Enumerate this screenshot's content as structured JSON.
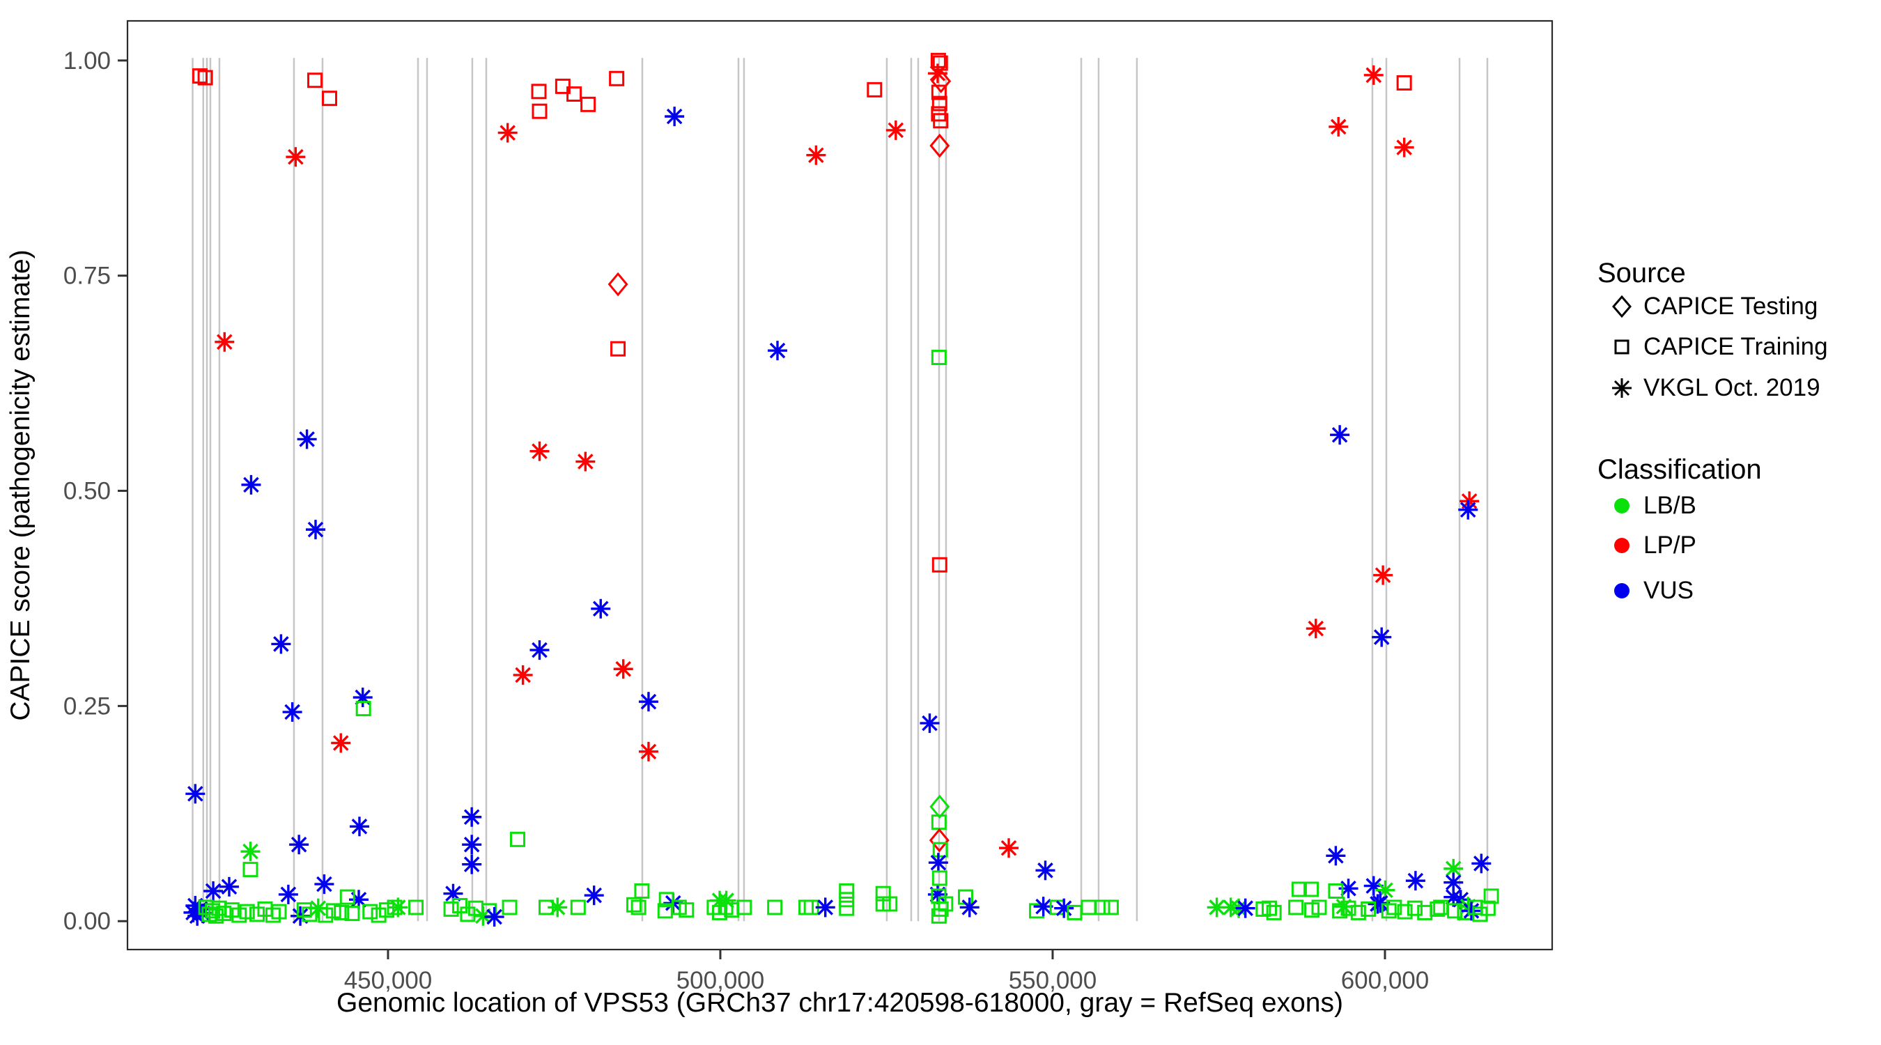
{
  "figure": {
    "background": "#ffffff"
  },
  "colors": {
    "LB": "#0ae10a",
    "LP": "#ff0000",
    "VUS": "#0000ee",
    "exon_line": "#c6c6c6",
    "axis_text": "#4d4d4d",
    "axis_title": "#000000",
    "panel_border": "#2b2b2b"
  },
  "legend": {
    "source": {
      "title": "Source",
      "items": [
        {
          "label": "CAPICE Testing",
          "marker": "diamond"
        },
        {
          "label": "CAPICE Training",
          "marker": "square"
        },
        {
          "label": "VKGL Oct. 2019",
          "marker": "asterisk"
        }
      ]
    },
    "classification": {
      "title": "Classification",
      "items": [
        {
          "label": "LB/B",
          "color_key": "LB"
        },
        {
          "label": "LP/P",
          "color_key": "LP"
        },
        {
          "label": "VUS",
          "color_key": "VUS"
        }
      ]
    }
  },
  "chart_data": {
    "type": "scatter",
    "xlabel": "Genomic location of VPS53 (GRCh37 chr17:420598-618000, gray = RefSeq exons)",
    "ylabel": "CAPICE score (pathogenicity estimate)",
    "xlim": [
      410800,
      625160
    ],
    "ylim": [
      -0.033,
      1.046
    ],
    "x_ticks": [
      {
        "v": 450000,
        "label": "450,000"
      },
      {
        "v": 500000,
        "label": "500,000"
      },
      {
        "v": 550000,
        "label": "550,000"
      },
      {
        "v": 600000,
        "label": "600,000"
      }
    ],
    "y_ticks": [
      {
        "v": 0.0,
        "label": "0.00"
      },
      {
        "v": 0.25,
        "label": "0.25"
      },
      {
        "v": 0.5,
        "label": "0.50"
      },
      {
        "v": 0.75,
        "label": "0.75"
      },
      {
        "v": 1.0,
        "label": "1.00"
      }
    ],
    "exon_positions": [
      420600,
      422200,
      422750,
      423270,
      424630,
      435850,
      440150,
      454510,
      455870,
      462680,
      464780,
      488260,
      502730,
      503560,
      525050,
      528720,
      529770,
      532910,
      533960,
      554300,
      556920,
      562680,
      598110,
      600210,
      611220,
      615410
    ],
    "point_format": [
      "genomic_location",
      "capice_score",
      "classification",
      "source"
    ],
    "points": [
      [
        421700,
        0.982,
        "LP",
        "train"
      ],
      [
        422500,
        0.98,
        "LP",
        "train"
      ],
      [
        439000,
        0.977,
        "LP",
        "train"
      ],
      [
        441200,
        0.956,
        "LP",
        "train"
      ],
      [
        436100,
        0.888,
        "LP",
        "vkgl"
      ],
      [
        425400,
        0.673,
        "LP",
        "vkgl"
      ],
      [
        429400,
        0.507,
        "VUS",
        "vkgl"
      ],
      [
        437800,
        0.56,
        "VUS",
        "vkgl"
      ],
      [
        439100,
        0.455,
        "VUS",
        "vkgl"
      ],
      [
        433900,
        0.322,
        "VUS",
        "vkgl"
      ],
      [
        435600,
        0.243,
        "VUS",
        "vkgl"
      ],
      [
        446200,
        0.26,
        "VUS",
        "vkgl"
      ],
      [
        446300,
        0.247,
        "LB",
        "train"
      ],
      [
        442900,
        0.207,
        "LP",
        "vkgl"
      ],
      [
        421000,
        0.148,
        "VUS",
        "vkgl"
      ],
      [
        468000,
        0.916,
        "LP",
        "vkgl"
      ],
      [
        472700,
        0.964,
        "LP",
        "train"
      ],
      [
        476300,
        0.97,
        "LP",
        "train"
      ],
      [
        478000,
        0.961,
        "LP",
        "train"
      ],
      [
        480100,
        0.949,
        "LP",
        "train"
      ],
      [
        472800,
        0.941,
        "LP",
        "train"
      ],
      [
        484400,
        0.979,
        "LP",
        "train"
      ],
      [
        472800,
        0.546,
        "LP",
        "vkgl"
      ],
      [
        479700,
        0.534,
        "LP",
        "vkgl"
      ],
      [
        472800,
        0.315,
        "VUS",
        "vkgl"
      ],
      [
        470300,
        0.286,
        "LP",
        "vkgl"
      ],
      [
        482000,
        0.363,
        "VUS",
        "vkgl"
      ],
      [
        485400,
        0.293,
        "LP",
        "vkgl"
      ],
      [
        489200,
        0.255,
        "VUS",
        "vkgl"
      ],
      [
        489200,
        0.197,
        "LP",
        "vkgl"
      ],
      [
        484600,
        0.74,
        "LP",
        "test"
      ],
      [
        484600,
        0.665,
        "LP",
        "train"
      ],
      [
        493100,
        0.935,
        "VUS",
        "vkgl"
      ],
      [
        508600,
        0.663,
        "VUS",
        "vkgl"
      ],
      [
        514400,
        0.89,
        "LP",
        "vkgl"
      ],
      [
        523200,
        0.966,
        "LP",
        "train"
      ],
      [
        526400,
        0.919,
        "LP",
        "vkgl"
      ],
      [
        532800,
        1.0,
        "LP",
        "train"
      ],
      [
        533100,
        0.997,
        "LP",
        "train"
      ],
      [
        532700,
        0.985,
        "LP",
        "vkgl"
      ],
      [
        533200,
        0.976,
        "LP",
        "test"
      ],
      [
        532900,
        0.963,
        "LP",
        "train"
      ],
      [
        533000,
        0.95,
        "LP",
        "train"
      ],
      [
        532850,
        0.938,
        "LP",
        "train"
      ],
      [
        533150,
        0.93,
        "LP",
        "train"
      ],
      [
        533000,
        0.901,
        "LP",
        "test"
      ],
      [
        532900,
        0.655,
        "LB",
        "train"
      ],
      [
        533000,
        0.414,
        "LP",
        "train"
      ],
      [
        531500,
        0.23,
        "VUS",
        "vkgl"
      ],
      [
        533000,
        0.133,
        "LB",
        "test"
      ],
      [
        532900,
        0.115,
        "LB",
        "train"
      ],
      [
        532950,
        0.094,
        "LP",
        "test"
      ],
      [
        533100,
        0.083,
        "LB",
        "train"
      ],
      [
        532800,
        0.068,
        "VUS",
        "vkgl"
      ],
      [
        532700,
        0.031,
        "VUS",
        "vkgl"
      ],
      [
        533000,
        0.05,
        "LB",
        "train"
      ],
      [
        532850,
        0.029,
        "LB",
        "train"
      ],
      [
        533200,
        0.014,
        "LB",
        "train"
      ],
      [
        532900,
        0.006,
        "LB",
        "train"
      ],
      [
        598300,
        0.983,
        "LP",
        "vkgl"
      ],
      [
        602900,
        0.974,
        "LP",
        "train"
      ],
      [
        593000,
        0.923,
        "LP",
        "vkgl"
      ],
      [
        602900,
        0.899,
        "LP",
        "vkgl"
      ],
      [
        593200,
        0.565,
        "VUS",
        "vkgl"
      ],
      [
        589600,
        0.34,
        "LP",
        "vkgl"
      ],
      [
        599500,
        0.33,
        "VUS",
        "vkgl"
      ],
      [
        599700,
        0.402,
        "LP",
        "vkgl"
      ],
      [
        612700,
        0.488,
        "LP",
        "vkgl"
      ],
      [
        612500,
        0.478,
        "VUS",
        "vkgl"
      ],
      [
        462600,
        0.121,
        "VUS",
        "vkgl"
      ],
      [
        462600,
        0.089,
        "VUS",
        "vkgl"
      ],
      [
        462600,
        0.066,
        "VUS",
        "vkgl"
      ],
      [
        445700,
        0.11,
        "VUS",
        "vkgl"
      ],
      [
        436600,
        0.089,
        "VUS",
        "vkgl"
      ],
      [
        429300,
        0.081,
        "LB",
        "vkgl"
      ],
      [
        429300,
        0.06,
        "LB",
        "train"
      ],
      [
        426100,
        0.04,
        "VUS",
        "vkgl"
      ],
      [
        440400,
        0.043,
        "VUS",
        "vkgl"
      ],
      [
        445600,
        0.025,
        "VUS",
        "vkgl"
      ],
      [
        435000,
        0.031,
        "VUS",
        "vkgl"
      ],
      [
        423700,
        0.035,
        "VUS",
        "vkgl"
      ],
      [
        469500,
        0.095,
        "LB",
        "train"
      ],
      [
        459800,
        0.032,
        "VUS",
        "vkgl"
      ],
      [
        481000,
        0.03,
        "VUS",
        "vkgl"
      ],
      [
        488200,
        0.035,
        "LB",
        "train"
      ],
      [
        492900,
        0.021,
        "VUS",
        "vkgl"
      ],
      [
        500900,
        0.024,
        "LB",
        "vkgl"
      ],
      [
        519000,
        0.035,
        "LB",
        "train"
      ],
      [
        519000,
        0.025,
        "LB",
        "train"
      ],
      [
        524500,
        0.032,
        "LB",
        "train"
      ],
      [
        543400,
        0.085,
        "LP",
        "vkgl"
      ],
      [
        548900,
        0.059,
        "VUS",
        "vkgl"
      ],
      [
        536900,
        0.028,
        "LB",
        "train"
      ],
      [
        537500,
        0.016,
        "VUS",
        "vkgl"
      ],
      [
        592600,
        0.076,
        "VUS",
        "vkgl"
      ],
      [
        614500,
        0.067,
        "VUS",
        "vkgl"
      ],
      [
        610300,
        0.061,
        "LB",
        "vkgl"
      ],
      [
        610300,
        0.045,
        "VUS",
        "vkgl"
      ],
      [
        604600,
        0.047,
        "VUS",
        "vkgl"
      ],
      [
        594500,
        0.038,
        "VUS",
        "vkgl"
      ],
      [
        598300,
        0.041,
        "VUS",
        "vkgl"
      ],
      [
        600050,
        0.036,
        "LB",
        "vkgl"
      ],
      [
        599300,
        0.021,
        "VUS",
        "vkgl"
      ],
      [
        610300,
        0.028,
        "VUS",
        "vkgl"
      ],
      [
        611400,
        0.025,
        "VUS",
        "vkgl"
      ],
      [
        587100,
        0.037,
        "LB",
        "train"
      ],
      [
        588900,
        0.037,
        "LB",
        "train"
      ],
      [
        592600,
        0.035,
        "LB",
        "train"
      ],
      [
        593800,
        0.017,
        "LB",
        "vkgl"
      ],
      [
        598900,
        0.02,
        "VUS",
        "vkgl"
      ],
      [
        616000,
        0.029,
        "LB",
        "train"
      ],
      [
        612500,
        0.017,
        "LB",
        "vkgl"
      ],
      [
        420700,
        0.01,
        "VUS",
        "vkgl"
      ],
      [
        421000,
        0.018,
        "VUS",
        "vkgl"
      ],
      [
        421300,
        0.006,
        "VUS",
        "vkgl"
      ],
      [
        421700,
        0.014,
        "VUS",
        "vkgl"
      ],
      [
        422100,
        0.009,
        "VUS",
        "vkgl"
      ],
      [
        422600,
        0.016,
        "LB",
        "train"
      ],
      [
        423100,
        0.008,
        "LB",
        "train"
      ],
      [
        423600,
        0.012,
        "LB",
        "train"
      ],
      [
        424100,
        0.006,
        "LB",
        "train"
      ],
      [
        424600,
        0.015,
        "LB",
        "train"
      ],
      [
        425300,
        0.009,
        "LB",
        "train"
      ],
      [
        426500,
        0.013,
        "LB",
        "train"
      ],
      [
        427600,
        0.007,
        "LB",
        "train"
      ],
      [
        428800,
        0.011,
        "LB",
        "train"
      ],
      [
        430300,
        0.008,
        "LB",
        "train"
      ],
      [
        431500,
        0.014,
        "LB",
        "train"
      ],
      [
        432700,
        0.007,
        "LB",
        "train"
      ],
      [
        433600,
        0.011,
        "LB",
        "train"
      ],
      [
        436800,
        0.006,
        "VUS",
        "vkgl"
      ],
      [
        437400,
        0.013,
        "LB",
        "train"
      ],
      [
        438200,
        0.008,
        "LB",
        "train"
      ],
      [
        439500,
        0.015,
        "LB",
        "vkgl"
      ],
      [
        440600,
        0.007,
        "LB",
        "train"
      ],
      [
        441800,
        0.012,
        "LB",
        "train"
      ],
      [
        443000,
        0.01,
        "LB",
        "train"
      ],
      [
        443900,
        0.028,
        "LB",
        "train"
      ],
      [
        444600,
        0.009,
        "LB",
        "train"
      ],
      [
        447300,
        0.011,
        "LB",
        "train"
      ],
      [
        448600,
        0.007,
        "LB",
        "train"
      ],
      [
        449800,
        0.013,
        "LB",
        "train"
      ],
      [
        451000,
        0.016,
        "LB",
        "train"
      ],
      [
        451500,
        0.016,
        "LB",
        "vkgl"
      ],
      [
        454200,
        0.016,
        "LB",
        "train"
      ],
      [
        459500,
        0.014,
        "LB",
        "train"
      ],
      [
        460800,
        0.018,
        "LB",
        "train"
      ],
      [
        462000,
        0.008,
        "LB",
        "train"
      ],
      [
        463200,
        0.015,
        "LB",
        "train"
      ],
      [
        464300,
        0.006,
        "LB",
        "vkgl"
      ],
      [
        465200,
        0.012,
        "LB",
        "train"
      ],
      [
        466000,
        0.005,
        "VUS",
        "vkgl"
      ],
      [
        468300,
        0.016,
        "LB",
        "train"
      ],
      [
        473800,
        0.016,
        "LB",
        "train"
      ],
      [
        475500,
        0.016,
        "LB",
        "vkgl"
      ],
      [
        478600,
        0.016,
        "LB",
        "train"
      ],
      [
        487000,
        0.019,
        "LB",
        "train"
      ],
      [
        487700,
        0.016,
        "LB",
        "train"
      ],
      [
        491700,
        0.012,
        "LB",
        "train"
      ],
      [
        491900,
        0.025,
        "LB",
        "train"
      ],
      [
        493800,
        0.016,
        "LB",
        "train"
      ],
      [
        494900,
        0.013,
        "LB",
        "train"
      ],
      [
        499100,
        0.016,
        "LB",
        "train"
      ],
      [
        499900,
        0.024,
        "LB",
        "vkgl"
      ],
      [
        499900,
        0.01,
        "LB",
        "train"
      ],
      [
        500800,
        0.016,
        "LB",
        "train"
      ],
      [
        501700,
        0.013,
        "LB",
        "train"
      ],
      [
        503600,
        0.016,
        "LB",
        "train"
      ],
      [
        508200,
        0.016,
        "LB",
        "train"
      ],
      [
        512900,
        0.016,
        "LB",
        "train"
      ],
      [
        513700,
        0.016,
        "LB",
        "train"
      ],
      [
        515800,
        0.016,
        "VUS",
        "vkgl"
      ],
      [
        519000,
        0.015,
        "LB",
        "train"
      ],
      [
        524500,
        0.02,
        "LB",
        "train"
      ],
      [
        525500,
        0.02,
        "LB",
        "train"
      ],
      [
        533900,
        0.02,
        "LB",
        "train"
      ],
      [
        547600,
        0.012,
        "LB",
        "train"
      ],
      [
        548600,
        0.017,
        "VUS",
        "vkgl"
      ],
      [
        550700,
        0.016,
        "LB",
        "train"
      ],
      [
        551700,
        0.015,
        "VUS",
        "vkgl"
      ],
      [
        553300,
        0.01,
        "LB",
        "train"
      ],
      [
        555400,
        0.016,
        "LB",
        "train"
      ],
      [
        557500,
        0.016,
        "LB",
        "train"
      ],
      [
        558800,
        0.016,
        "LB",
        "train"
      ],
      [
        574700,
        0.016,
        "LB",
        "vkgl"
      ],
      [
        576800,
        0.016,
        "LB",
        "vkgl"
      ],
      [
        578000,
        0.015,
        "LB",
        "vkgl"
      ],
      [
        579000,
        0.015,
        "VUS",
        "vkgl"
      ],
      [
        581700,
        0.014,
        "LB",
        "train"
      ],
      [
        582600,
        0.015,
        "LB",
        "train"
      ],
      [
        583300,
        0.01,
        "LB",
        "train"
      ],
      [
        586600,
        0.016,
        "LB",
        "train"
      ],
      [
        589000,
        0.013,
        "LB",
        "train"
      ],
      [
        590100,
        0.016,
        "LB",
        "train"
      ],
      [
        593200,
        0.012,
        "LB",
        "train"
      ],
      [
        594500,
        0.015,
        "LB",
        "train"
      ],
      [
        596000,
        0.01,
        "LB",
        "train"
      ],
      [
        597500,
        0.014,
        "LB",
        "train"
      ],
      [
        600600,
        0.012,
        "LB",
        "train"
      ],
      [
        601400,
        0.016,
        "LB",
        "train"
      ],
      [
        603000,
        0.011,
        "LB",
        "train"
      ],
      [
        604500,
        0.015,
        "LB",
        "train"
      ],
      [
        606000,
        0.01,
        "LB",
        "train"
      ],
      [
        607900,
        0.014,
        "LB",
        "train"
      ],
      [
        608400,
        0.016,
        "LB",
        "train"
      ],
      [
        610500,
        0.012,
        "LB",
        "train"
      ],
      [
        612000,
        0.01,
        "LB",
        "train"
      ],
      [
        613000,
        0.012,
        "VUS",
        "vkgl"
      ],
      [
        613600,
        0.016,
        "LB",
        "train"
      ],
      [
        614300,
        0.008,
        "LB",
        "train"
      ],
      [
        615500,
        0.015,
        "LB",
        "train"
      ]
    ]
  }
}
